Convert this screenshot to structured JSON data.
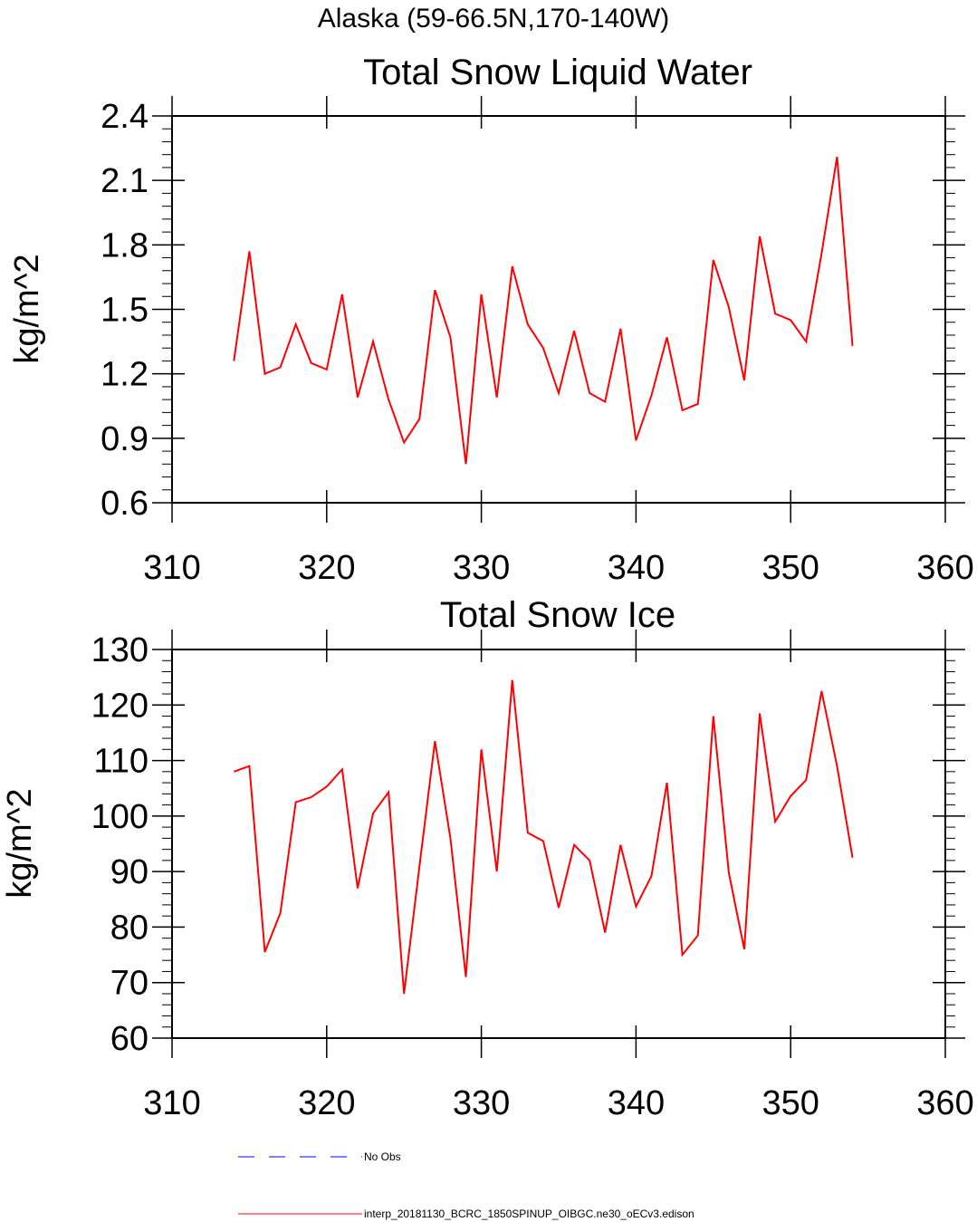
{
  "figure": {
    "title": "Alaska (59-66.5N,170-140W)"
  },
  "chart_data": [
    {
      "type": "line",
      "title": "Total Snow Liquid Water",
      "xlabel": "",
      "ylabel": "kg/m^2",
      "xlim": [
        310,
        360
      ],
      "ylim": [
        0.6,
        2.4
      ],
      "xticks": [
        310,
        320,
        330,
        340,
        350,
        360
      ],
      "xtick_labels": [
        "310",
        "320",
        "330",
        "340",
        "350",
        "360"
      ],
      "yticks": [
        0.6,
        0.9,
        1.2,
        1.5,
        1.8,
        2.1,
        2.4
      ],
      "ytick_labels": [
        "0.6",
        "0.9",
        "1.2",
        "1.5",
        "1.8",
        "2.1",
        "2.4"
      ],
      "grid": false,
      "series": [
        {
          "name": "interp_20181130_BCRC_1850SPINUP_OIBGC.ne30_oECv3.edison",
          "color": "#ff0000",
          "x": [
            314,
            315,
            316,
            317,
            318,
            319,
            320,
            321,
            322,
            323,
            324,
            325,
            326,
            327,
            328,
            329,
            330,
            331,
            332,
            333,
            334,
            335,
            336,
            337,
            338,
            339,
            340,
            341,
            342,
            343,
            344,
            345,
            346,
            347,
            348,
            349,
            350,
            351,
            352,
            353,
            354
          ],
          "y": [
            1.26,
            1.77,
            1.2,
            1.23,
            1.43,
            1.25,
            1.22,
            1.57,
            1.09,
            1.35,
            1.08,
            0.88,
            0.99,
            1.59,
            1.37,
            0.78,
            1.57,
            1.09,
            1.7,
            1.43,
            1.32,
            1.11,
            1.4,
            1.11,
            1.07,
            1.41,
            0.89,
            1.1,
            1.37,
            1.03,
            1.06,
            1.73,
            1.51,
            1.17,
            1.84,
            1.48,
            1.45,
            1.35,
            1.76,
            2.21,
            1.33
          ]
        }
      ]
    },
    {
      "type": "line",
      "title": "Total Snow Ice",
      "xlabel": "",
      "ylabel": "kg/m^2",
      "xlim": [
        310,
        360
      ],
      "ylim": [
        60,
        130
      ],
      "xticks": [
        310,
        320,
        330,
        340,
        350,
        360
      ],
      "xtick_labels": [
        "310",
        "320",
        "330",
        "340",
        "350",
        "360"
      ],
      "yticks": [
        60,
        70,
        80,
        90,
        100,
        110,
        120,
        130
      ],
      "ytick_labels": [
        "60",
        "70",
        "80",
        "90",
        "100",
        "110",
        "120",
        "130"
      ],
      "grid": false,
      "series": [
        {
          "name": "interp_20181130_BCRC_1850SPINUP_OIBGC.ne30_oECv3.edison",
          "color": "#ff0000",
          "x": [
            314,
            315,
            316,
            317,
            318,
            319,
            320,
            321,
            322,
            323,
            324,
            325,
            326,
            327,
            328,
            329,
            330,
            331,
            332,
            333,
            334,
            335,
            336,
            337,
            338,
            339,
            340,
            341,
            342,
            343,
            344,
            345,
            346,
            347,
            348,
            349,
            350,
            351,
            352,
            353,
            354
          ],
          "y": [
            108.0,
            109.0,
            75.5,
            82.5,
            102.5,
            103.4,
            105.3,
            108.4,
            87.0,
            100.5,
            104.3,
            68.0,
            91.0,
            113.5,
            96.0,
            71.0,
            112.0,
            90.0,
            124.5,
            97.0,
            95.5,
            83.5,
            94.8,
            92.0,
            79.0,
            94.8,
            83.7,
            89.2,
            106.0,
            75.0,
            78.5,
            118.0,
            89.8,
            76.0,
            118.5,
            99.0,
            103.6,
            106.5,
            122.5,
            109.0,
            92.5
          ]
        }
      ]
    }
  ],
  "legend": {
    "placement": "bottom",
    "entries": [
      {
        "label": "No Obs",
        "color": "#0000ff",
        "style": "dashed"
      },
      {
        "label": "interp_20181130_BCRC_1850SPINUP_OIBGC.ne30_oECv3.edison",
        "color": "#ff0000",
        "style": "solid"
      }
    ]
  }
}
